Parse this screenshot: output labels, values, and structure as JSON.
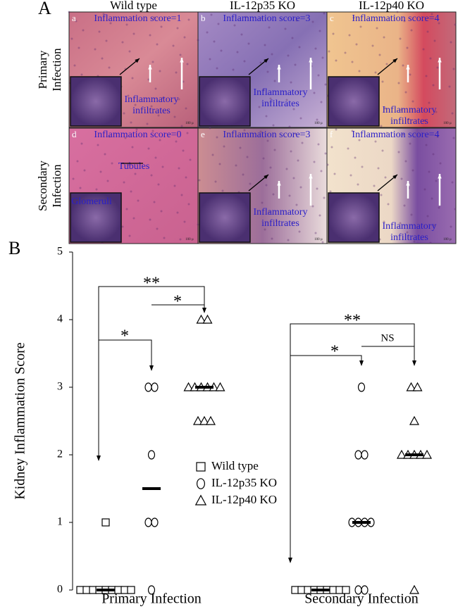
{
  "panel_a": {
    "label": "A",
    "columns": [
      "Wild type",
      "IL-12p35 KO",
      "IL-12p40 KO"
    ],
    "rows": [
      [
        "Primary",
        "Infection"
      ],
      [
        "Secondary",
        "Infection"
      ]
    ],
    "panels": [
      {
        "letter": "a",
        "score": "Inflammation score=1",
        "labels": [
          [
            "Inflammatory",
            "infiltrates"
          ]
        ]
      },
      {
        "letter": "b",
        "score": "Inflammation score=3",
        "labels": [
          [
            "Inflammatory",
            "infiltrates"
          ]
        ]
      },
      {
        "letter": "c",
        "score": "Inflammation score=4",
        "labels": [
          [
            "Inflammatory",
            "infiltrates"
          ]
        ]
      },
      {
        "letter": "d",
        "score": "Inflammation score=0",
        "labels": [
          [
            "Tubules"
          ],
          [
            "Glomeruli"
          ]
        ]
      },
      {
        "letter": "e",
        "score": "Inflammation score=3",
        "labels": [
          [
            "Inflammatory",
            "infiltrates"
          ]
        ]
      },
      {
        "letter": "f",
        "score": "Inflammation score=4",
        "labels": [
          [
            "Inflammatory",
            "infiltrates"
          ]
        ]
      }
    ],
    "scale": "100 µ"
  },
  "chart_data": {
    "type": "dot",
    "panel_label": "B",
    "y_label": "Kidney Inflammation Score",
    "categories": [
      "Primary Infection",
      "Secondary Infection"
    ],
    "ylim": [
      0,
      5
    ],
    "yticks": [
      0,
      1,
      2,
      3,
      4,
      5
    ],
    "series": [
      {
        "name": "Wild type",
        "marker": "square",
        "values": [
          [
            0,
            0,
            0,
            0,
            0,
            0,
            0,
            0,
            0,
            1
          ],
          [
            0,
            0,
            0,
            0,
            0,
            0,
            0,
            0,
            0
          ]
        ],
        "medians": [
          0,
          0
        ]
      },
      {
        "name": "IL-12p35 KO",
        "marker": "circle",
        "values": [
          [
            3,
            3,
            2,
            1,
            1,
            0
          ],
          [
            3,
            2,
            2,
            1,
            1,
            1,
            1,
            0,
            0
          ]
        ],
        "medians": [
          1.5,
          1
        ]
      },
      {
        "name": "IL-12p40 KO",
        "marker": "triangle",
        "values": [
          [
            4,
            4,
            3,
            3,
            3,
            3,
            3,
            3,
            2.5,
            2.5,
            2.5
          ],
          [
            3,
            3,
            2.5,
            2,
            2,
            2,
            2,
            2,
            0
          ]
        ],
        "medians": [
          3,
          2
        ]
      }
    ],
    "significance": [
      "**",
      "*",
      "*",
      "**",
      "*",
      "NS"
    ]
  }
}
